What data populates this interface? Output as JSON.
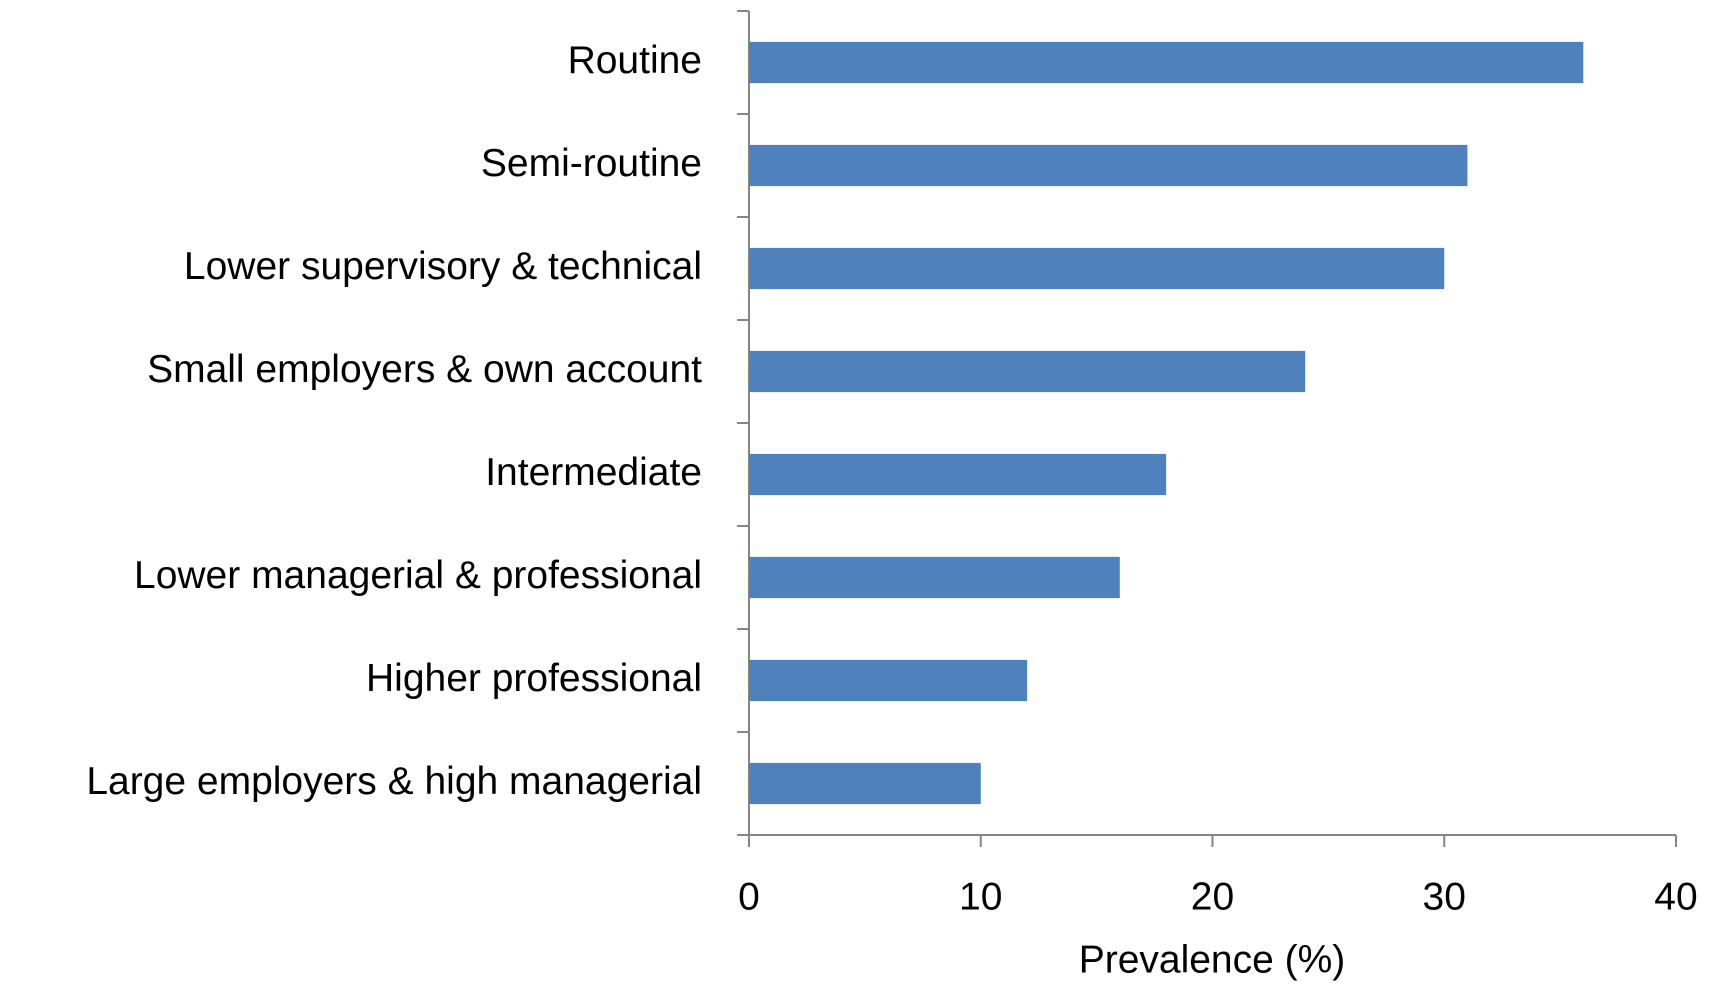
{
  "chart_data": {
    "type": "bar",
    "orientation": "horizontal",
    "categories": [
      "Routine",
      "Semi-routine",
      "Lower supervisory & technical",
      "Small employers & own account",
      "Intermediate",
      "Lower managerial & professional",
      "Higher professional",
      "Large employers & high managerial"
    ],
    "values": [
      36,
      31,
      30,
      24,
      18,
      16,
      12,
      10
    ],
    "color": "#4f81bd",
    "xlabel": "Prevalence (%)",
    "xlim": [
      0,
      40
    ],
    "xticks": [
      0,
      10,
      20,
      30,
      40
    ],
    "grid": false
  }
}
